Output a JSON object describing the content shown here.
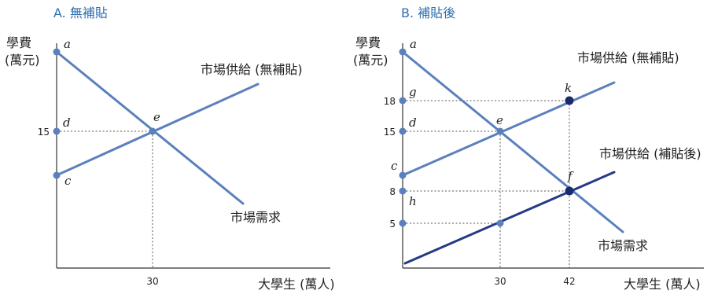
{
  "chart_data": [
    {
      "type": "line",
      "title": "A. 無補貼",
      "ylabel": [
        "學費",
        "(萬元)"
      ],
      "xlabel": "大學生 (萬人)",
      "y_ticks": [
        {
          "value": 15,
          "label": "15"
        }
      ],
      "x_ticks": [
        {
          "value": 30,
          "label": "30"
        }
      ],
      "series": [
        {
          "name": "市場需求",
          "color": "#5b80be",
          "points": [
            [
              0,
              25.5
            ],
            [
              30,
              15
            ],
            [
              60,
              4.4
            ]
          ]
        },
        {
          "name": "市場供給 (無補貼)",
          "color": "#5b80be",
          "points": [
            [
              0,
              10
            ],
            [
              30,
              15
            ],
            [
              65,
              21.8
            ]
          ]
        }
      ],
      "points": [
        {
          "label": "a",
          "x": 0,
          "y": 25.5
        },
        {
          "label": "d",
          "x": 0,
          "y": 15
        },
        {
          "label": "c",
          "x": 0,
          "y": 10
        },
        {
          "label": "e",
          "x": 30,
          "y": 15
        }
      ]
    },
    {
      "type": "line",
      "title": "B. 補貼後",
      "ylabel": [
        "學費",
        "(萬元)"
      ],
      "xlabel": "大學生 (萬人)",
      "y_ticks": [
        {
          "value": 18,
          "label": "18"
        },
        {
          "value": 15,
          "label": "15"
        },
        {
          "value": 8,
          "label": "8"
        },
        {
          "value": 5,
          "label": "5"
        }
      ],
      "x_ticks": [
        {
          "value": 30,
          "label": "30"
        },
        {
          "value": 42,
          "label": "42"
        }
      ],
      "series": [
        {
          "name": "市場需求",
          "color": "#5b80be",
          "points": [
            [
              0,
              26
            ],
            [
              30,
              15
            ],
            [
              42,
              8
            ],
            [
              54,
              1.2
            ]
          ]
        },
        {
          "name": "市場供給 (無補貼)",
          "color": "#5b80be",
          "points": [
            [
              0,
              12
            ],
            [
              30,
              15
            ],
            [
              42,
              18
            ],
            [
              54,
              21
            ]
          ]
        },
        {
          "name": "市場供給 (補貼後)",
          "color": "#243a85",
          "points": [
            [
              0,
              0.5
            ],
            [
              30,
              5
            ],
            [
              42,
              8
            ],
            [
              54,
              10
            ]
          ]
        }
      ],
      "points": [
        {
          "label": "a",
          "x": 0,
          "y": 26
        },
        {
          "label": "g",
          "x": 0,
          "y": 18
        },
        {
          "label": "d",
          "x": 0,
          "y": 15
        },
        {
          "label": "c",
          "x": 0,
          "y": 12
        },
        {
          "label": "h",
          "x": 0,
          "y": 8
        },
        {
          "label": "",
          "x": 0,
          "y": 5
        },
        {
          "label": "e",
          "x": 30,
          "y": 15
        },
        {
          "label": "k",
          "x": 42,
          "y": 18
        },
        {
          "label": "f",
          "x": 42,
          "y": 8
        },
        {
          "label": "",
          "x": 30,
          "y": 5
        }
      ]
    }
  ]
}
